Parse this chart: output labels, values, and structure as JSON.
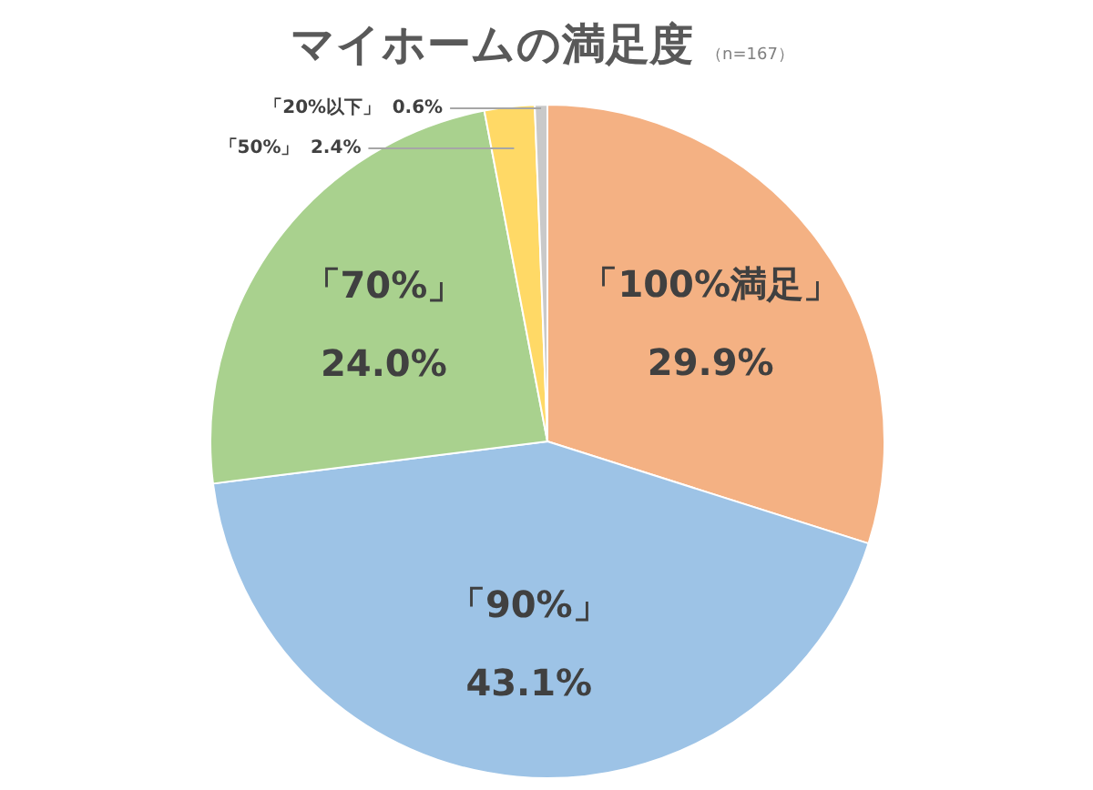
{
  "chart_data": {
    "type": "pie",
    "title": "マイホームの満足度",
    "subtitle": "（n=167）",
    "categories": [
      "「100%満足」",
      "「90%」",
      "「70%」",
      "「50%」",
      "「20%以下」"
    ],
    "values": [
      29.9,
      43.1,
      24.0,
      2.4,
      0.6
    ],
    "colors": [
      "#f4b183",
      "#9dc3e6",
      "#a9d18e",
      "#ffd966",
      "#c9c9c9"
    ],
    "value_labels": [
      "29.9%",
      "43.1%",
      "24.0%",
      "2.4%",
      "0.6%"
    ]
  }
}
